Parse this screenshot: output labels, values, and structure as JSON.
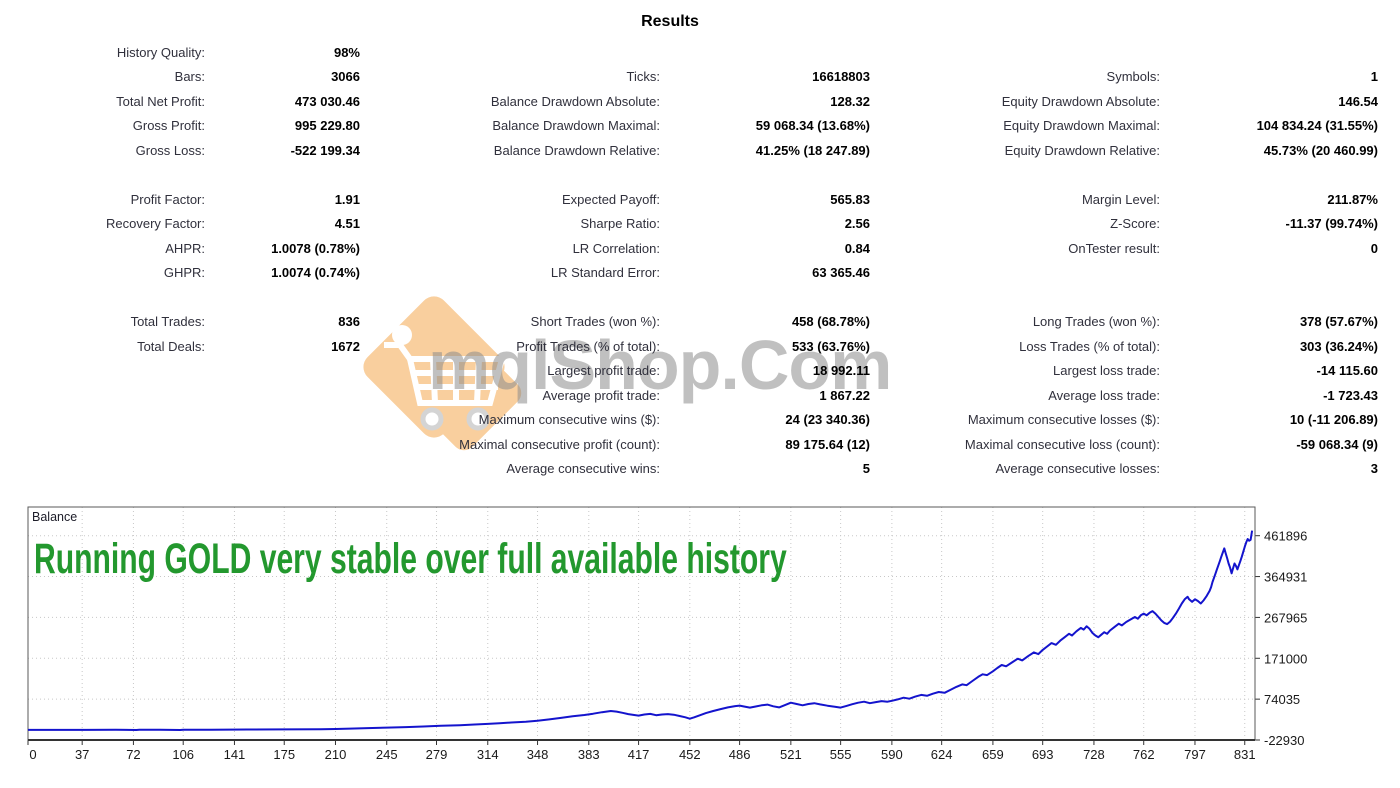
{
  "page": {
    "title": "Results"
  },
  "results": {
    "rows": [
      {
        "cells": [
          "History Quality:",
          "98%",
          "",
          "",
          "",
          ""
        ]
      },
      {
        "cells": [
          "Bars:",
          "3066",
          "Ticks:",
          "16618803",
          "Symbols:",
          "1"
        ]
      },
      {
        "cells": [
          "Total Net Profit:",
          "473 030.46",
          "Balance Drawdown Absolute:",
          "128.32",
          "Equity Drawdown Absolute:",
          "146.54"
        ]
      },
      {
        "cells": [
          "Gross Profit:",
          "995 229.80",
          "Balance Drawdown Maximal:",
          "59 068.34 (13.68%)",
          "Equity Drawdown Maximal:",
          "104 834.24 (31.55%)"
        ]
      },
      {
        "cells": [
          "Gross Loss:",
          "-522 199.34",
          "Balance Drawdown Relative:",
          "41.25% (18 247.89)",
          "Equity Drawdown Relative:",
          "45.73% (20 460.99)"
        ]
      },
      {
        "cells": [
          "",
          "",
          "",
          "",
          "",
          ""
        ]
      },
      {
        "cells": [
          "Profit Factor:",
          "1.91",
          "Expected Payoff:",
          "565.83",
          "Margin Level:",
          "211.87%"
        ]
      },
      {
        "cells": [
          "Recovery Factor:",
          "4.51",
          "Sharpe Ratio:",
          "2.56",
          "Z-Score:",
          "-11.37 (99.74%)"
        ]
      },
      {
        "cells": [
          "AHPR:",
          "1.0078 (0.78%)",
          "LR Correlation:",
          "0.84",
          "OnTester result:",
          "0"
        ]
      },
      {
        "cells": [
          "GHPR:",
          "1.0074 (0.74%)",
          "LR Standard Error:",
          "63 365.46",
          "",
          ""
        ]
      },
      {
        "cells": [
          "",
          "",
          "",
          "",
          "",
          ""
        ]
      },
      {
        "cells": [
          "Total Trades:",
          "836",
          "Short Trades (won %):",
          "458 (68.78%)",
          "Long Trades (won %):",
          "378 (57.67%)"
        ]
      },
      {
        "cells": [
          "Total Deals:",
          "1672",
          "Profit Trades (% of total):",
          "533 (63.76%)",
          "Loss Trades (% of total):",
          "303 (36.24%)"
        ]
      },
      {
        "cells": [
          "",
          "",
          "Largest profit trade:",
          "18 992.11",
          "Largest loss trade:",
          "-14 115.60"
        ]
      },
      {
        "cells": [
          "",
          "",
          "Average profit trade:",
          "1 867.22",
          "Average loss trade:",
          "-1 723.43"
        ]
      },
      {
        "cells": [
          "",
          "",
          "Maximum consecutive wins ($):",
          "24 (23 340.36)",
          "Maximum consecutive losses ($):",
          "10 (-11 206.89)"
        ]
      },
      {
        "cells": [
          "",
          "",
          "Maximal consecutive profit (count):",
          "89 175.64 (12)",
          "Maximal consecutive loss (count):",
          "-59 068.34 (9)"
        ]
      },
      {
        "cells": [
          "",
          "",
          "Average consecutive wins:",
          "5",
          "Average consecutive losses:",
          "3"
        ]
      }
    ]
  },
  "watermark": {
    "text": "mqlShop.Com",
    "tag_color": "#f9cf9e",
    "text_color": "#8c8c8c"
  },
  "chart_data": {
    "type": "line",
    "title": "Balance",
    "annotation": "Running GOLD very stable over full available history",
    "annotation_color": "#23982e",
    "line_color": "#1414cd",
    "grid": true,
    "legend_position": "top-left",
    "x_ticks": [
      0,
      37,
      72,
      106,
      141,
      175,
      210,
      245,
      279,
      314,
      348,
      383,
      417,
      452,
      486,
      521,
      555,
      590,
      624,
      659,
      693,
      728,
      762,
      797,
      831
    ],
    "y_ticks": [
      461896,
      364931,
      267965,
      171000,
      74035,
      -22930
    ],
    "xlim": [
      0,
      838
    ],
    "ylim": [
      -22930,
      530000
    ],
    "series": [
      {
        "name": "Balance",
        "x": [
          0,
          20,
          40,
          60,
          74,
          76,
          90,
          104,
          106,
          125,
          150,
          175,
          200,
          210,
          220,
          232,
          245,
          258,
          270,
          282,
          295,
          305,
          314,
          322,
          330,
          340,
          348,
          356,
          364,
          372,
          380,
          386,
          392,
          398,
          402,
          406,
          410,
          414,
          417,
          421,
          425,
          429,
          433,
          437,
          441,
          445,
          449,
          452,
          455,
          459,
          463,
          468,
          473,
          478,
          483,
          486,
          489,
          493,
          497,
          501,
          505,
          509,
          513,
          517,
          521,
          525,
          529,
          533,
          537,
          541,
          546,
          551,
          555,
          559,
          563,
          567,
          571,
          575,
          579,
          583,
          587,
          590,
          594,
          598,
          602,
          606,
          610,
          614,
          618,
          622,
          626,
          630,
          634,
          638,
          641,
          645,
          649,
          652,
          655,
          659,
          662,
          665,
          668,
          672,
          676,
          679,
          683,
          687,
          690,
          693,
          696,
          699,
          702,
          705,
          708,
          711,
          713,
          716,
          719,
          721,
          723,
          725,
          727,
          729,
          731,
          733,
          735,
          737,
          739,
          742,
          745,
          747,
          750,
          753,
          756,
          758,
          760,
          762,
          764,
          766,
          768,
          770,
          772,
          774,
          776,
          778,
          780,
          782,
          784,
          786,
          788,
          790,
          792,
          793,
          795,
          797,
          799,
          801,
          803,
          805,
          807,
          808,
          809,
          810,
          811,
          812,
          813,
          814,
          815,
          816,
          817,
          818,
          819,
          820,
          821,
          822,
          823,
          824,
          825,
          826,
          827,
          828,
          829,
          830,
          831,
          832,
          833,
          834,
          835,
          836
        ],
        "y": [
          1000,
          1100,
          1050,
          1200,
          700,
          1300,
          1250,
          800,
          1400,
          1600,
          1900,
          2300,
          2800,
          3200,
          4200,
          5200,
          6400,
          7800,
          9200,
          10800,
          12200,
          13800,
          15200,
          16800,
          18500,
          20500,
          22800,
          26000,
          29500,
          33500,
          36500,
          39500,
          43000,
          46000,
          44500,
          41500,
          38500,
          36500,
          35000,
          37500,
          39000,
          36000,
          37500,
          38500,
          37000,
          34000,
          31000,
          27500,
          31000,
          36000,
          41000,
          46000,
          50500,
          54500,
          57500,
          58800,
          56500,
          54000,
          56500,
          59500,
          61000,
          57000,
          54500,
          60000,
          65500,
          62500,
          59500,
          62500,
          64500,
          61500,
          58500,
          56000,
          54000,
          58000,
          62000,
          65500,
          68000,
          64500,
          67000,
          69500,
          68000,
          70000,
          73500,
          77500,
          75000,
          80000,
          84000,
          82000,
          87000,
          91000,
          89000,
          96000,
          103000,
          109000,
          107000,
          117000,
          127000,
          133000,
          131000,
          140000,
          148000,
          155000,
          152000,
          161000,
          170000,
          166000,
          176000,
          185000,
          181000,
          191000,
          199000,
          207000,
          203000,
          213000,
          221000,
          229000,
          225000,
          235000,
          243000,
          239000,
          247000,
          241000,
          231000,
          225000,
          221000,
          227000,
          233000,
          229000,
          237000,
          245000,
          253000,
          249000,
          257000,
          263000,
          269000,
          265000,
          273000,
          277000,
          273000,
          279000,
          283000,
          277000,
          269000,
          261000,
          255000,
          252000,
          258000,
          267000,
          277000,
          289000,
          301000,
          311000,
          317000,
          311000,
          305000,
          311000,
          307000,
          301000,
          309000,
          319000,
          331000,
          340000,
          352000,
          362000,
          372000,
          382000,
          392000,
          402000,
          412000,
          422000,
          431800,
          420000,
          408000,
          396000,
          386000,
          372700,
          384000,
          396000,
          390000,
          382000,
          392000,
          402000,
          412000,
          424000,
          436000,
          446000,
          454000,
          450000,
          452000,
          474030
        ]
      }
    ]
  }
}
